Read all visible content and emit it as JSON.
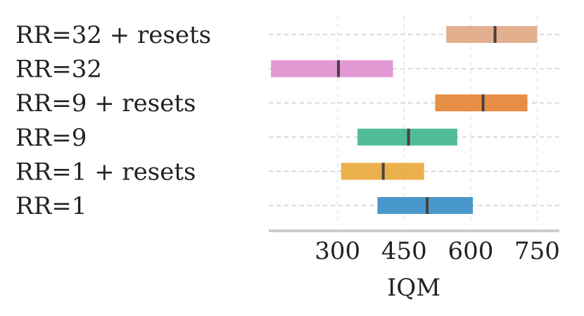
{
  "chart_data": {
    "type": "interval",
    "title": "",
    "xlabel": "IQM",
    "ylabel": "",
    "xlim": [
      145,
      800
    ],
    "xticks": [
      300,
      450,
      600,
      750
    ],
    "grid": true,
    "categories": [
      "RR=32 + resets",
      "RR=32",
      "RR=9 + resets",
      "RR=9",
      "RR=1 + resets",
      "RR=1"
    ],
    "intervals": [
      {
        "category": "RR=32 + resets",
        "low": 545,
        "mid": 655,
        "high": 750,
        "color": "#dfa986"
      },
      {
        "category": "RR=32",
        "low": 150,
        "mid": 302,
        "high": 425,
        "color": "#e090cf"
      },
      {
        "category": "RR=9 + resets",
        "low": 520,
        "mid": 628,
        "high": 728,
        "color": "#e58436"
      },
      {
        "category": "RR=9",
        "low": 345,
        "mid": 460,
        "high": 570,
        "color": "#43b68f"
      },
      {
        "category": "RR=1 + resets",
        "low": 308,
        "mid": 403,
        "high": 495,
        "color": "#e9a93c"
      },
      {
        "category": "RR=1",
        "low": 390,
        "mid": 502,
        "high": 605,
        "color": "#3a8fc7"
      }
    ]
  }
}
